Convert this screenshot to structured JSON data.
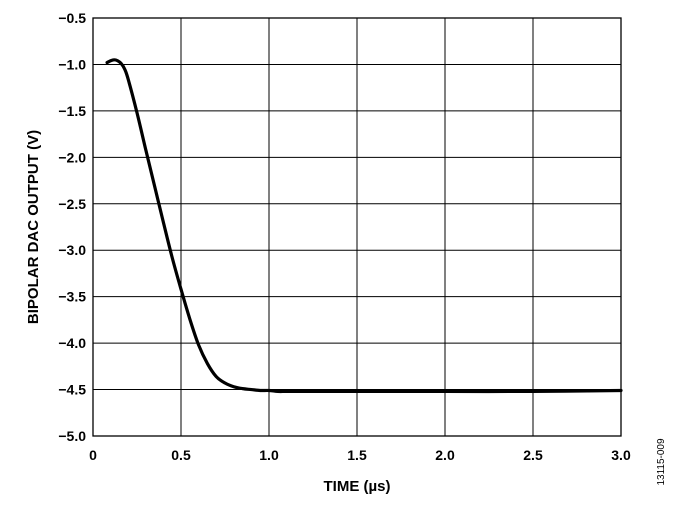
{
  "chart_data": {
    "type": "line",
    "xlabel": "TIME (µs)",
    "ylabel": "BIPOLAR DAC OUTPUT (V)",
    "xlim": [
      0,
      3.0
    ],
    "ylim": [
      -5.0,
      -0.5
    ],
    "x_ticks": [
      "0",
      "0.5",
      "1.0",
      "1.5",
      "2.0",
      "2.5",
      "3.0"
    ],
    "y_ticks": [
      "−0.5",
      "−1.0",
      "−1.5",
      "−2.0",
      "−2.5",
      "−3.0",
      "−3.5",
      "−4.0",
      "−4.5",
      "−5.0"
    ],
    "grid": true,
    "series": [
      {
        "color": "#000000",
        "x": [
          0.08,
          0.1,
          0.12,
          0.14,
          0.16,
          0.18,
          0.2,
          0.25,
          0.3,
          0.35,
          0.4,
          0.45,
          0.5,
          0.55,
          0.6,
          0.65,
          0.7,
          0.75,
          0.8,
          0.85,
          0.9,
          0.95,
          1.0,
          1.05,
          1.1,
          1.2,
          1.5,
          2.0,
          2.5,
          3.0
        ],
        "y": [
          -0.98,
          -0.96,
          -0.95,
          -0.96,
          -0.99,
          -1.05,
          -1.16,
          -1.52,
          -1.92,
          -2.31,
          -2.7,
          -3.08,
          -3.42,
          -3.74,
          -4.02,
          -4.22,
          -4.36,
          -4.43,
          -4.47,
          -4.49,
          -4.5,
          -4.51,
          -4.51,
          -4.52,
          -4.52,
          -4.52,
          -4.52,
          -4.52,
          -4.52,
          -4.51
        ]
      }
    ]
  },
  "figure_id": "13115-009"
}
